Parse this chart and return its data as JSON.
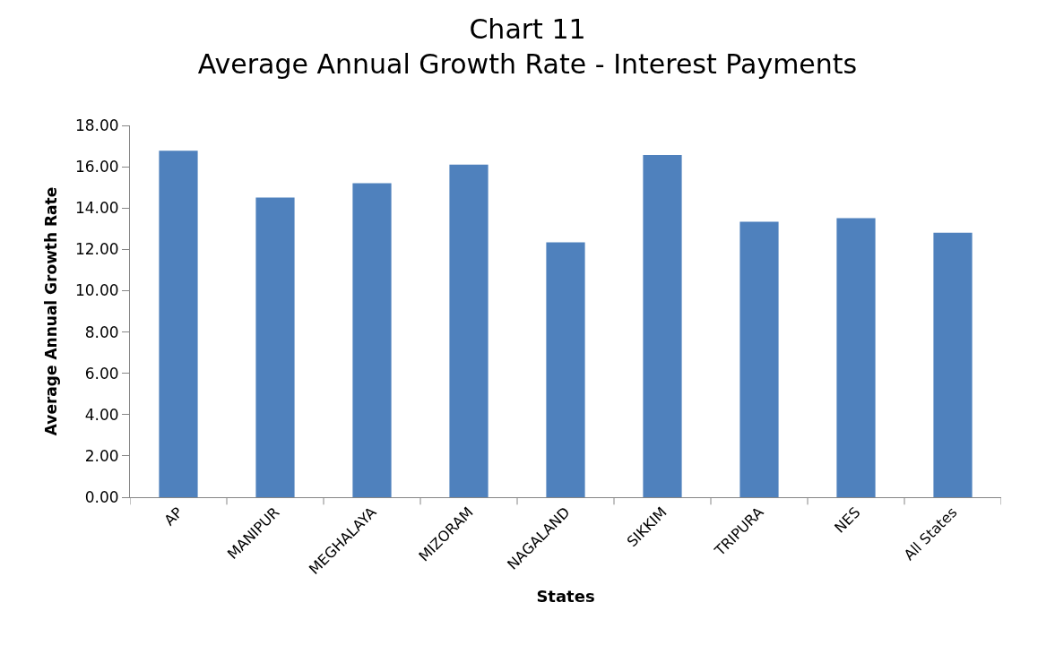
{
  "chart_data": {
    "type": "bar",
    "title": "Chart 11\nAverage Annual Growth Rate - Interest Payments",
    "xlabel": "States",
    "ylabel": "Average Annual Growth Rate",
    "categories": [
      "AP",
      "MANIPUR",
      "MEGHALAYA",
      "MIZORAM",
      "NAGALAND",
      "SIKKIM",
      "TRIPURA",
      "NES",
      "All States"
    ],
    "values": [
      16.78,
      14.51,
      15.2,
      16.1,
      12.34,
      16.57,
      13.34,
      13.51,
      12.81
    ],
    "color": "#4f81bd",
    "ylim": [
      0,
      18
    ],
    "yticks": [
      {
        "value": 0,
        "label": "0.00"
      },
      {
        "value": 2,
        "label": "2.00"
      },
      {
        "value": 4,
        "label": "4.00"
      },
      {
        "value": 6,
        "label": "6.00"
      },
      {
        "value": 8,
        "label": "8.00"
      },
      {
        "value": 10,
        "label": "10.00"
      },
      {
        "value": 12,
        "label": "12.00"
      },
      {
        "value": 14,
        "label": "14.00"
      },
      {
        "value": 16,
        "label": "16.00"
      },
      {
        "value": 18,
        "label": "18.00"
      }
    ],
    "orientation": "vertical"
  }
}
